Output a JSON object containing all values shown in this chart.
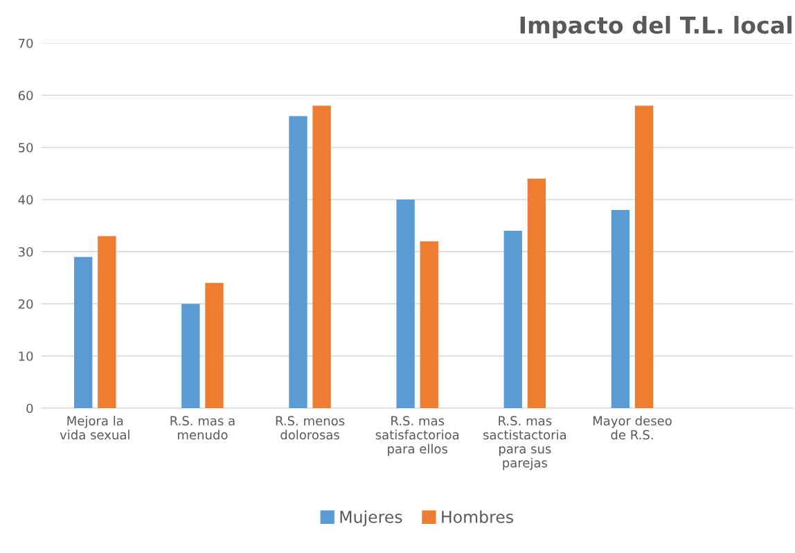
{
  "chart_data": {
    "type": "bar",
    "title": "Impacto del T.L. local",
    "categories": [
      "Mejora la vida sexual",
      "R.S. mas a menudo",
      "R.S. menos dolorosas",
      "R.S. mas satisfactorioa para ellos",
      "R.S. mas sactistactoria para sus parejas",
      "Mayor deseo de R.S.",
      null
    ],
    "series": [
      {
        "name": "Mujeres",
        "color": "#5b9bd5",
        "values": [
          29,
          20,
          56,
          40,
          34,
          38,
          null
        ]
      },
      {
        "name": "Hombres",
        "color": "#ed7d31",
        "values": [
          33,
          24,
          58,
          32,
          44,
          58,
          null
        ]
      }
    ],
    "ylim": [
      0,
      70
    ],
    "yticks": [
      0,
      10,
      20,
      30,
      40,
      50,
      60,
      70
    ],
    "grid": "y",
    "legend": "bottom"
  }
}
